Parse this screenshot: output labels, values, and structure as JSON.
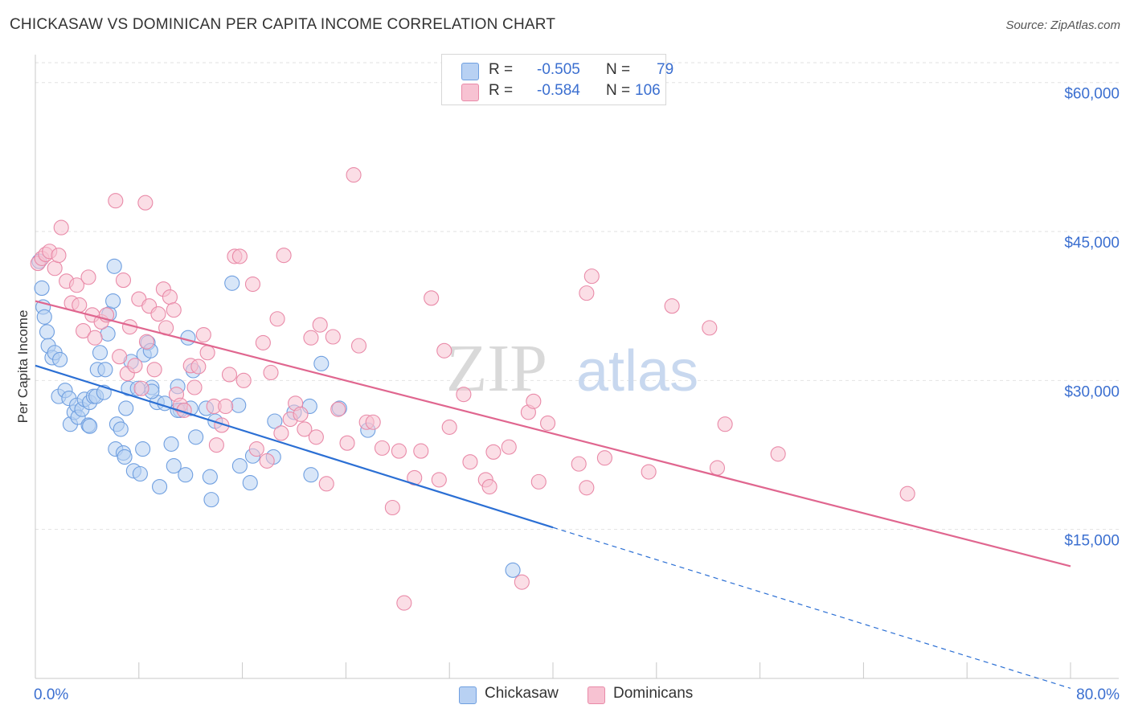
{
  "title": "CHICKASAW VS DOMINICAN PER CAPITA INCOME CORRELATION CHART",
  "source": "Source: ZipAtlas.com",
  "watermark": {
    "zip": "ZIP",
    "atlas": "atlas"
  },
  "legend": {
    "r_label": "R =",
    "n_label": "N =",
    "series": [
      {
        "name": "Chickasaw",
        "r": "-0.505",
        "n": "79",
        "color": "#6f9fe0",
        "fill": "#b8d1f3",
        "line": "#2b6fd4"
      },
      {
        "name": "Dominicans",
        "r": "-0.584",
        "n": "106",
        "color": "#e98aa8",
        "fill": "#f7c2d2",
        "line": "#e0668f"
      }
    ]
  },
  "chart_data": {
    "type": "scatter",
    "title": "CHICKASAW VS DOMINICAN PER CAPITA INCOME CORRELATION CHART",
    "xlabel": "",
    "ylabel": "Per Capita Income",
    "xlim": [
      0,
      80
    ],
    "ylim": [
      0,
      62000
    ],
    "x_tick_labels": {
      "min": "0.0%",
      "max": "80.0%"
    },
    "y_ticks": [
      {
        "value": 15000,
        "label": "$15,000"
      },
      {
        "value": 30000,
        "label": "$30,000"
      },
      {
        "value": 45000,
        "label": "$45,000"
      },
      {
        "value": 60000,
        "label": "$60,000"
      }
    ],
    "grid": true,
    "series": [
      {
        "name": "Chickasaw",
        "trend": {
          "x0": 0,
          "y0": 31500,
          "x1": 40,
          "y1": 15200,
          "dash_to_x": 80,
          "dash_to_y": -1000
        },
        "points": [
          [
            0.3,
            42000
          ],
          [
            0.5,
            39300
          ],
          [
            0.6,
            37400
          ],
          [
            0.7,
            36400
          ],
          [
            0.9,
            34900
          ],
          [
            1.0,
            33500
          ],
          [
            1.3,
            32300
          ],
          [
            1.5,
            32800
          ],
          [
            1.9,
            32100
          ],
          [
            1.8,
            28400
          ],
          [
            2.3,
            29000
          ],
          [
            2.6,
            28200
          ],
          [
            2.7,
            25600
          ],
          [
            3.0,
            26800
          ],
          [
            3.2,
            27500
          ],
          [
            3.3,
            26300
          ],
          [
            3.6,
            27100
          ],
          [
            3.8,
            28100
          ],
          [
            4.1,
            25500
          ],
          [
            4.2,
            27800
          ],
          [
            4.5,
            28400
          ],
          [
            4.7,
            28400
          ],
          [
            4.8,
            31100
          ],
          [
            5.0,
            32800
          ],
          [
            5.3,
            28800
          ],
          [
            5.4,
            31100
          ],
          [
            5.6,
            34700
          ],
          [
            5.7,
            36700
          ],
          [
            6.0,
            38000
          ],
          [
            6.1,
            41500
          ],
          [
            6.2,
            23100
          ],
          [
            6.3,
            25600
          ],
          [
            6.6,
            25100
          ],
          [
            6.8,
            22700
          ],
          [
            6.9,
            22300
          ],
          [
            7.0,
            27200
          ],
          [
            7.2,
            29200
          ],
          [
            7.4,
            31900
          ],
          [
            7.6,
            20900
          ],
          [
            7.9,
            29200
          ],
          [
            8.1,
            20600
          ],
          [
            8.3,
            23100
          ],
          [
            8.4,
            32600
          ],
          [
            8.7,
            33800
          ],
          [
            8.9,
            33000
          ],
          [
            9.0,
            29300
          ],
          [
            9.4,
            27800
          ],
          [
            9.6,
            19300
          ],
          [
            10.0,
            27700
          ],
          [
            10.5,
            23600
          ],
          [
            10.7,
            21400
          ],
          [
            11.0,
            29400
          ],
          [
            11.2,
            27000
          ],
          [
            11.6,
            20500
          ],
          [
            11.8,
            34300
          ],
          [
            12.0,
            27200
          ],
          [
            12.2,
            31000
          ],
          [
            12.4,
            24300
          ],
          [
            13.2,
            27200
          ],
          [
            13.5,
            20300
          ],
          [
            13.6,
            18000
          ],
          [
            13.9,
            25900
          ],
          [
            15.2,
            39800
          ],
          [
            15.7,
            27500
          ],
          [
            15.8,
            21400
          ],
          [
            16.6,
            19700
          ],
          [
            16.8,
            22400
          ],
          [
            18.4,
            22300
          ],
          [
            18.5,
            25900
          ],
          [
            20.0,
            26800
          ],
          [
            21.2,
            27400
          ],
          [
            21.3,
            20500
          ],
          [
            22.1,
            31700
          ],
          [
            23.5,
            27200
          ],
          [
            25.7,
            25000
          ],
          [
            36.9,
            10900
          ],
          [
            4.2,
            25400
          ],
          [
            9.0,
            28900
          ],
          [
            11.0,
            27000
          ]
        ]
      },
      {
        "name": "Dominicans",
        "trend": {
          "x0": 0,
          "y0": 38000,
          "x1": 80,
          "y1": 11300
        },
        "points": [
          [
            0.2,
            41800
          ],
          [
            0.5,
            42300
          ],
          [
            0.8,
            42700
          ],
          [
            1.1,
            43000
          ],
          [
            1.5,
            41300
          ],
          [
            1.8,
            42600
          ],
          [
            2.0,
            45400
          ],
          [
            2.4,
            40000
          ],
          [
            2.8,
            37800
          ],
          [
            3.2,
            39600
          ],
          [
            3.4,
            37600
          ],
          [
            3.7,
            35000
          ],
          [
            4.1,
            40400
          ],
          [
            4.4,
            36600
          ],
          [
            4.6,
            34300
          ],
          [
            5.1,
            35900
          ],
          [
            5.5,
            36600
          ],
          [
            6.2,
            48100
          ],
          [
            6.5,
            32400
          ],
          [
            6.8,
            40100
          ],
          [
            7.1,
            30700
          ],
          [
            7.3,
            35400
          ],
          [
            7.7,
            31500
          ],
          [
            8.0,
            38200
          ],
          [
            8.2,
            29200
          ],
          [
            8.5,
            47900
          ],
          [
            8.6,
            33900
          ],
          [
            8.8,
            37500
          ],
          [
            9.2,
            31100
          ],
          [
            9.5,
            36700
          ],
          [
            9.9,
            39200
          ],
          [
            10.1,
            35300
          ],
          [
            10.4,
            38400
          ],
          [
            10.7,
            37100
          ],
          [
            10.9,
            28600
          ],
          [
            11.2,
            27500
          ],
          [
            11.5,
            27000
          ],
          [
            12.0,
            31500
          ],
          [
            12.3,
            29300
          ],
          [
            12.6,
            31400
          ],
          [
            13.0,
            34600
          ],
          [
            13.3,
            32800
          ],
          [
            13.8,
            27400
          ],
          [
            14.0,
            23500
          ],
          [
            14.4,
            25500
          ],
          [
            14.7,
            27400
          ],
          [
            15.0,
            30600
          ],
          [
            15.4,
            42500
          ],
          [
            15.8,
            42500
          ],
          [
            16.1,
            30000
          ],
          [
            16.8,
            39700
          ],
          [
            17.1,
            23100
          ],
          [
            17.6,
            33800
          ],
          [
            17.9,
            21900
          ],
          [
            18.2,
            30800
          ],
          [
            18.7,
            36200
          ],
          [
            19.0,
            24700
          ],
          [
            19.2,
            42600
          ],
          [
            19.7,
            26100
          ],
          [
            20.1,
            27700
          ],
          [
            20.5,
            26600
          ],
          [
            20.8,
            25100
          ],
          [
            21.3,
            34300
          ],
          [
            21.7,
            24300
          ],
          [
            22.0,
            35600
          ],
          [
            22.5,
            19600
          ],
          [
            23.0,
            34400
          ],
          [
            23.4,
            27100
          ],
          [
            24.1,
            23700
          ],
          [
            24.6,
            50700
          ],
          [
            25.0,
            33500
          ],
          [
            25.6,
            25800
          ],
          [
            26.1,
            25800
          ],
          [
            26.8,
            23200
          ],
          [
            27.6,
            17200
          ],
          [
            28.1,
            22900
          ],
          [
            28.5,
            7600
          ],
          [
            29.3,
            20200
          ],
          [
            29.8,
            22900
          ],
          [
            30.6,
            38300
          ],
          [
            31.2,
            20000
          ],
          [
            31.6,
            33000
          ],
          [
            32.0,
            25300
          ],
          [
            33.1,
            28600
          ],
          [
            33.6,
            21800
          ],
          [
            34.8,
            20000
          ],
          [
            35.1,
            19300
          ],
          [
            35.4,
            22800
          ],
          [
            36.6,
            23300
          ],
          [
            37.6,
            9700
          ],
          [
            38.1,
            26800
          ],
          [
            38.5,
            27900
          ],
          [
            38.9,
            19800
          ],
          [
            39.6,
            25700
          ],
          [
            42.6,
            38800
          ],
          [
            43.0,
            40500
          ],
          [
            42.0,
            21600
          ],
          [
            44.0,
            22200
          ],
          [
            47.4,
            20800
          ],
          [
            49.2,
            37500
          ],
          [
            52.1,
            35300
          ],
          [
            52.7,
            21200
          ],
          [
            53.3,
            25600
          ],
          [
            57.4,
            22600
          ],
          [
            67.4,
            18600
          ],
          [
            42.6,
            19200
          ]
        ]
      }
    ]
  }
}
